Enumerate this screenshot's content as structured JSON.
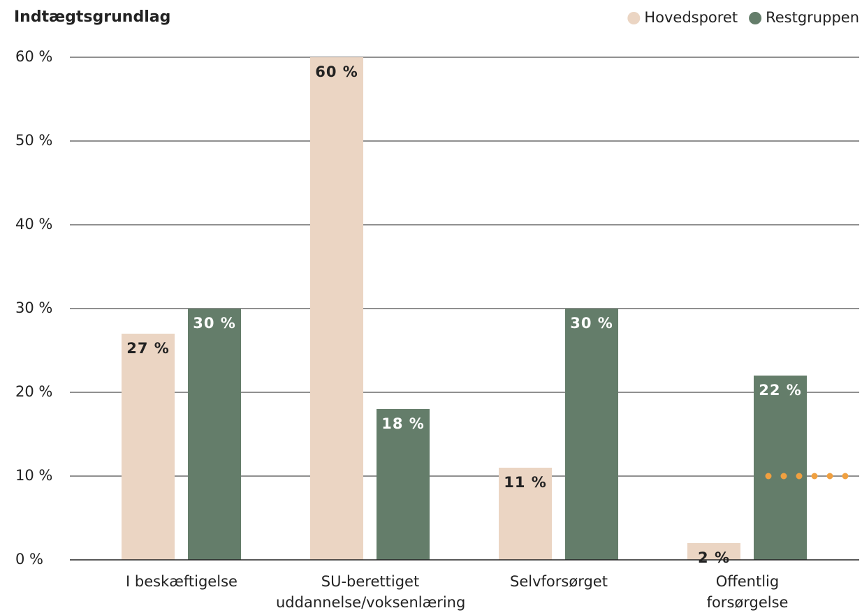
{
  "chart_data": {
    "type": "bar",
    "title": "Indtægtsgrundlag",
    "categories": [
      "I beskæftigelse",
      "SU-berettiget\nuddannelse/voksenlæring",
      "Selvforsørget",
      "Offentlig\nforsørgelse"
    ],
    "series": [
      {
        "name": "Hovedsporet",
        "color": "#ebd5c3",
        "label_color": "#222222",
        "values": [
          27,
          60,
          11,
          2
        ],
        "value_labels": [
          "27 %",
          "60 %",
          "11 %",
          "2 %"
        ]
      },
      {
        "name": "Restgruppen",
        "color": "#647d6a",
        "label_color": "#ffffff",
        "values": [
          30,
          18,
          30,
          22
        ],
        "value_labels": [
          "30 %",
          "18 %",
          "30 %",
          "22 %"
        ]
      }
    ],
    "ylim": [
      0,
      60
    ],
    "yticks": [
      {
        "value": 0,
        "label": "0 %"
      },
      {
        "value": 10,
        "label": "10 %"
      },
      {
        "value": 20,
        "label": "20 %"
      },
      {
        "value": 30,
        "label": "30 %"
      },
      {
        "value": 40,
        "label": "40 %"
      },
      {
        "value": 50,
        "label": "50 %"
      },
      {
        "value": 60,
        "label": "60 %"
      }
    ],
    "grid": true,
    "legend": "top-right",
    "reference_line": {
      "value": 10,
      "color": "#f0a040"
    }
  }
}
